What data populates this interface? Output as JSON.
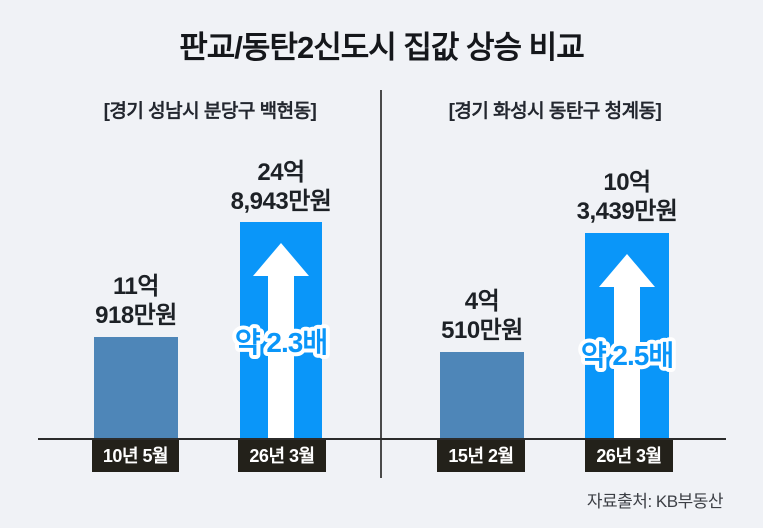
{
  "title": "판교/동탄2신도시 집값 상승 비교",
  "source": "자료출처: KB부동산",
  "colors": {
    "background": "#F0F2F6",
    "old_bar": "#4E86B8",
    "new_bar": "#0A96F9",
    "date_box": "#23211A",
    "multiplier_text": "#0A96F9",
    "multiplier_outline": "#FFFFFF",
    "title_text": "#15171B"
  },
  "panels": [
    {
      "header": "[경기 성남시 분당구 백현동]",
      "old_bar": {
        "value_line1": "11억",
        "value_line2": "918만원",
        "date": "10년 5월"
      },
      "new_bar": {
        "value_line1": "24억",
        "value_line2": "8,943만원",
        "date": "26년 3월"
      },
      "multiplier": "약 2.3배"
    },
    {
      "header": "[경기 화성시 동탄구 청계동]",
      "old_bar": {
        "value_line1": "4억",
        "value_line2": "510만원",
        "date": "15년 2월"
      },
      "new_bar": {
        "value_line1": "10억",
        "value_line2": "3,439만원",
        "date": "26년 3월"
      },
      "multiplier": "약 2.5배"
    }
  ],
  "chart_data": {
    "type": "bar",
    "title": "판교/동탄2신도시 집값 상승 비교",
    "unit": "만원",
    "grid": false,
    "legend": false,
    "panels": [
      {
        "region": "경기 성남시 분당구 백현동",
        "categories": [
          "10년 5월",
          "26년 3월"
        ],
        "values": [
          110918,
          248943
        ],
        "value_labels": [
          "11억 918만원",
          "24억 8,943만원"
        ],
        "multiplier_annotation": "약 2.3배",
        "bar_colors": [
          "#4E86B8",
          "#0A96F9"
        ]
      },
      {
        "region": "경기 화성시 동탄구 청계동",
        "categories": [
          "15년 2월",
          "26년 3월"
        ],
        "values": [
          40510,
          103439
        ],
        "value_labels": [
          "4억 510만원",
          "10억 3,439만원"
        ],
        "multiplier_annotation": "약 2.5배",
        "bar_colors": [
          "#4E86B8",
          "#0A96F9"
        ]
      }
    ],
    "source": "자료출처: KB부동산"
  }
}
